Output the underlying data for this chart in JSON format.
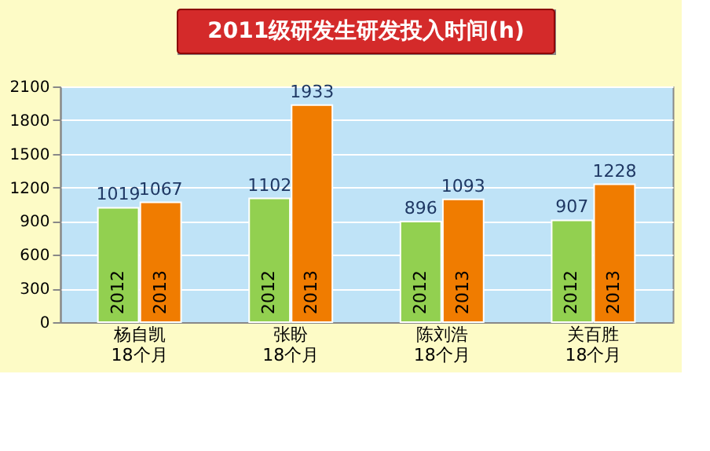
{
  "chart_data": {
    "type": "bar",
    "title": "2011级研发生研发投入时间(h)",
    "categories": [
      "杨自凯\n18个月",
      "张盼\n18个月",
      "陈刘浩\n18个月",
      "关百胜\n18个月"
    ],
    "series": [
      {
        "name": "2012",
        "color": "#92d050",
        "values": [
          1019,
          1102,
          896,
          907
        ]
      },
      {
        "name": "2013",
        "color": "#f07c00",
        "values": [
          1067,
          1933,
          1093,
          1228
        ]
      }
    ],
    "ylim": [
      0,
      2100
    ],
    "yticks": [
      0,
      300,
      600,
      900,
      1200,
      1500,
      1800,
      2100
    ],
    "grid": "y",
    "legend": false,
    "data_labels": true
  }
}
